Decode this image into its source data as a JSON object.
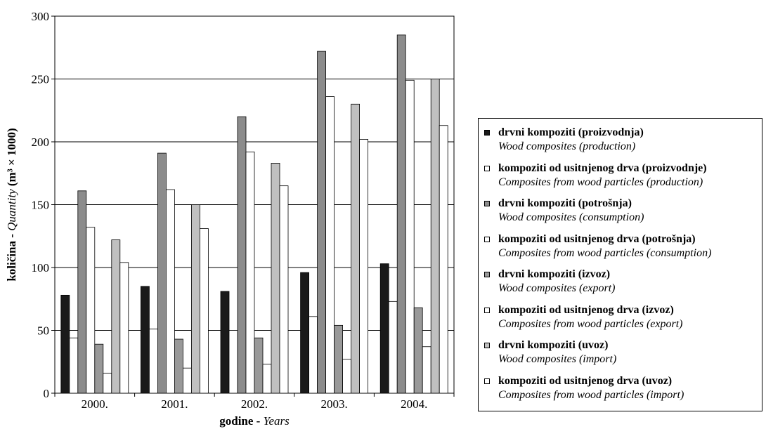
{
  "chart_data": {
    "type": "bar",
    "categories": [
      "2000.",
      "2001.",
      "2002.",
      "2003.",
      "2004."
    ],
    "ylim": [
      0,
      300
    ],
    "yticks": [
      0,
      50,
      100,
      150,
      200,
      250,
      300
    ],
    "grid": "horizontal",
    "legend_position": "right",
    "ylabel": {
      "bold": "količina - ",
      "italic": "Quantity",
      "unit": "(m³ × 1000)"
    },
    "xlabel": {
      "bold": "godine - ",
      "italic": "Years"
    },
    "series": [
      {
        "name": "drvni kompoziti (proizvodnja)",
        "subname": "Wood composites (production)",
        "color": "#1a1a1a",
        "values": [
          78,
          85,
          81,
          96,
          103
        ]
      },
      {
        "name": "kompoziti od usitnjenog drva (proizvodnje)",
        "subname": "Composites from wood particles (production)",
        "color": "#ffffff",
        "values": [
          44,
          51,
          50,
          61,
          73
        ]
      },
      {
        "name": "drvni kompoziti (potrošnja)",
        "subname": "Wood composites (consumption)",
        "color": "#8c8c8c",
        "values": [
          161,
          191,
          220,
          272,
          285
        ]
      },
      {
        "name": "kompoziti od usitnjenog drva (potrošnja)",
        "subname": "Composites from wood particles (consumption)",
        "color": "#ffffff",
        "values": [
          132,
          162,
          192,
          236,
          249
        ]
      },
      {
        "name": "drvni kompoziti (izvoz)",
        "subname": "Wood composites (export)",
        "color": "#999999",
        "values": [
          39,
          43,
          44,
          54,
          68
        ]
      },
      {
        "name": "kompoziti od usitnjenog drva (izvoz)",
        "subname": "Composites from wood particles (export)",
        "color": "#ffffff",
        "values": [
          16,
          20,
          23,
          27,
          37
        ]
      },
      {
        "name": "drvni kompoziti (uvoz)",
        "subname": "Wood composites (import)",
        "color": "#c0c0c0",
        "values": [
          122,
          150,
          183,
          230,
          250
        ]
      },
      {
        "name": "kompoziti od usitnjenog drva (uvoz)",
        "subname": "Composites from wood particles (import)",
        "color": "#ffffff",
        "values": [
          104,
          131,
          165,
          202,
          213
        ]
      }
    ]
  }
}
